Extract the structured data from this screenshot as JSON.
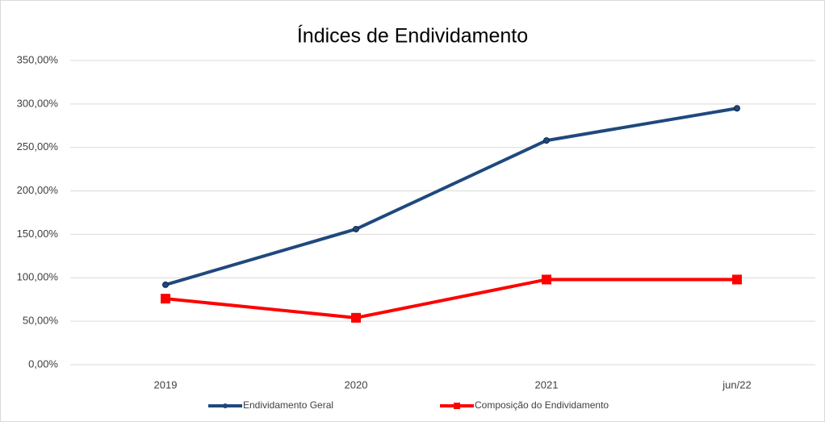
{
  "chart_data": {
    "type": "line",
    "title": "Índices de Endividamento",
    "categories": [
      "2019",
      "2020",
      "2021",
      "jun/22"
    ],
    "series": [
      {
        "name": "Endividamento Geral",
        "color": "#1f497d",
        "marker": "circle",
        "values": [
          92,
          156,
          258,
          295
        ]
      },
      {
        "name": "Composição do Endividamento",
        "color": "#ff0000",
        "marker": "square",
        "values": [
          76,
          54,
          98,
          98
        ]
      }
    ],
    "ylim": [
      0,
      350
    ],
    "yticks": [
      {
        "value": 0,
        "label": "0,00%"
      },
      {
        "value": 50,
        "label": "50,00%"
      },
      {
        "value": 100,
        "label": "100,00%"
      },
      {
        "value": 150,
        "label": "150,00%"
      },
      {
        "value": 200,
        "label": "200,00%"
      },
      {
        "value": 250,
        "label": "250,00%"
      },
      {
        "value": 300,
        "label": "300,00%"
      },
      {
        "value": 350,
        "label": "350,00%"
      }
    ],
    "grid": true,
    "legend": "bottom"
  }
}
